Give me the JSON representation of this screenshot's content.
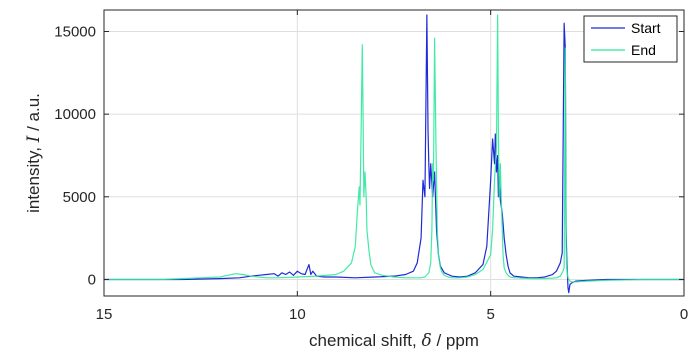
{
  "chart_data": {
    "type": "line",
    "xlabel_prefix": "chemical shift, ",
    "xlabel_symbol": "δ",
    "xlabel_suffix": " / ppm",
    "ylabel_prefix": "intensity, ",
    "ylabel_symbol": "I",
    "ylabel_suffix": " / a.u.",
    "xlim": [
      15,
      0
    ],
    "ylim": [
      -1000,
      16300
    ],
    "x_reversed": true,
    "grid": true,
    "legend_position": "top-right",
    "xticks": [
      15,
      10,
      5,
      0
    ],
    "xtick_labels": [
      "15",
      "10",
      "5",
      "0"
    ],
    "yticks": [
      0,
      5000,
      10000,
      15000
    ],
    "ytick_labels": [
      "0",
      "5000",
      "10000",
      "15000"
    ],
    "series": [
      {
        "name": "Start",
        "color": "#1f2bd6",
        "x": [
          15.0,
          13.0,
          12.0,
          11.5,
          11.2,
          11.0,
          10.8,
          10.6,
          10.5,
          10.4,
          10.3,
          10.2,
          10.1,
          10.0,
          9.9,
          9.8,
          9.7,
          9.65,
          9.6,
          9.5,
          9.3,
          9.0,
          8.5,
          8.0,
          7.5,
          7.2,
          7.0,
          6.9,
          6.8,
          6.75,
          6.7,
          6.65,
          6.62,
          6.6,
          6.58,
          6.55,
          6.5,
          6.45,
          6.4,
          6.35,
          6.3,
          6.2,
          6.1,
          6.0,
          5.8,
          5.6,
          5.4,
          5.2,
          5.1,
          5.0,
          4.95,
          4.9,
          4.88,
          4.85,
          4.82,
          4.8,
          4.78,
          4.75,
          4.7,
          4.65,
          4.6,
          4.55,
          4.5,
          4.4,
          4.2,
          4.0,
          3.8,
          3.6,
          3.4,
          3.3,
          3.2,
          3.15,
          3.1,
          3.07,
          3.05,
          3.03,
          3.0,
          2.98,
          2.95,
          2.9,
          2.8,
          2.5,
          2.0,
          1.0,
          0.5,
          0.0
        ],
        "y": [
          0,
          0,
          50,
          100,
          200,
          250,
          300,
          350,
          200,
          400,
          300,
          450,
          250,
          500,
          350,
          300,
          900,
          300,
          500,
          200,
          150,
          150,
          100,
          150,
          200,
          300,
          500,
          1000,
          2500,
          6000,
          5000,
          16000,
          9000,
          7000,
          5500,
          7000,
          5000,
          6500,
          3000,
          1500,
          800,
          400,
          300,
          200,
          150,
          200,
          400,
          900,
          2000,
          6000,
          8500,
          7000,
          8800,
          6500,
          7500,
          5000,
          6200,
          4800,
          4000,
          2500,
          1500,
          800,
          400,
          200,
          150,
          100,
          100,
          150,
          300,
          500,
          1000,
          1600,
          15500,
          14000,
          3000,
          1200,
          -500,
          -800,
          -300,
          -200,
          -100,
          -50,
          0,
          0,
          0,
          0
        ]
      },
      {
        "name": "End",
        "color": "#2ee89b",
        "x": [
          15.0,
          13.5,
          13.0,
          12.5,
          12.0,
          11.8,
          11.6,
          11.4,
          11.2,
          11.0,
          10.8,
          10.5,
          10.0,
          9.5,
          9.0,
          8.8,
          8.6,
          8.5,
          8.45,
          8.4,
          8.38,
          8.35,
          8.32,
          8.3,
          8.28,
          8.25,
          8.22,
          8.2,
          8.15,
          8.1,
          8.0,
          7.8,
          7.5,
          7.2,
          7.0,
          6.8,
          6.7,
          6.6,
          6.55,
          6.52,
          6.5,
          6.48,
          6.45,
          6.42,
          6.4,
          6.38,
          6.35,
          6.3,
          6.25,
          6.2,
          6.1,
          6.0,
          5.8,
          5.6,
          5.4,
          5.2,
          5.0,
          4.95,
          4.9,
          4.85,
          4.82,
          4.8,
          4.78,
          4.75,
          4.72,
          4.7,
          4.68,
          4.65,
          4.6,
          4.55,
          4.5,
          4.4,
          4.3,
          4.2,
          4.0,
          3.8,
          3.6,
          3.4,
          3.3,
          3.2,
          3.15,
          3.1,
          3.07,
          3.05,
          3.03,
          3.0,
          2.95,
          2.9,
          2.8,
          2.5,
          2.0,
          1.0,
          0.0
        ],
        "y": [
          0,
          0,
          50,
          100,
          150,
          250,
          350,
          300,
          200,
          150,
          100,
          100,
          150,
          200,
          300,
          500,
          1000,
          2000,
          4000,
          5600,
          4500,
          9000,
          14200,
          10000,
          5000,
          6500,
          5000,
          3000,
          1800,
          900,
          400,
          250,
          150,
          100,
          100,
          100,
          150,
          400,
          1000,
          3000,
          7000,
          6000,
          14600,
          9000,
          6000,
          3000,
          1500,
          700,
          400,
          250,
          150,
          100,
          100,
          150,
          300,
          600,
          1500,
          3000,
          6000,
          8000,
          16000,
          9000,
          5000,
          7000,
          4500,
          3000,
          1500,
          700,
          400,
          250,
          150,
          100,
          100,
          80,
          60,
          50,
          60,
          80,
          100,
          200,
          400,
          700,
          14000,
          2000,
          600,
          100,
          -100,
          -150,
          -150,
          -100,
          -50,
          0,
          0
        ]
      }
    ]
  }
}
